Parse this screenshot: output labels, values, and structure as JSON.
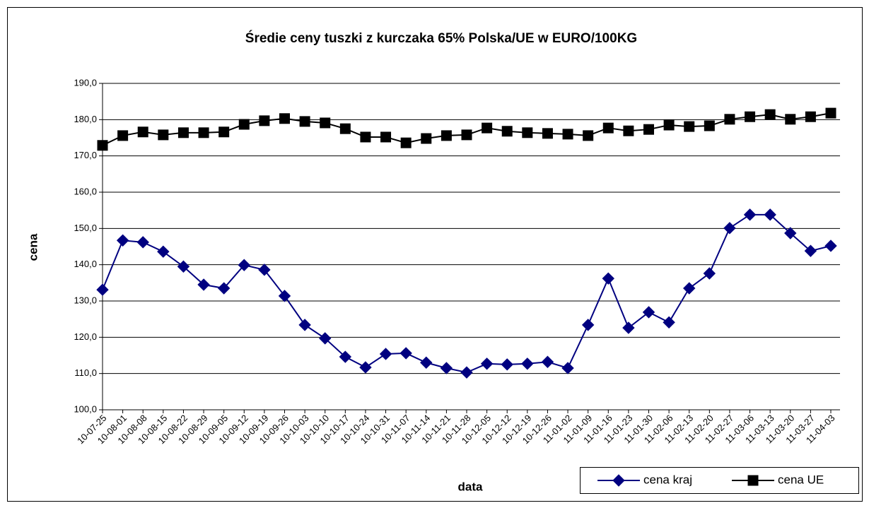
{
  "chart_data": {
    "type": "line",
    "title": "Średie ceny tuszki z kurczaka 65% Polska/UE w EURO/100KG",
    "x_label": "data",
    "y_label": "cena",
    "categories": [
      "10-07-25",
      "10-08-01",
      "10-08-08",
      "10-08-15",
      "10-08-22",
      "10-08-29",
      "10-09-05",
      "10-09-12",
      "10-09-19",
      "10-09-26",
      "10-10-03",
      "10-10-10",
      "10-10-17",
      "10-10-24",
      "10-10-31",
      "10-11-07",
      "10-11-14",
      "10-11-21",
      "10-11-28",
      "10-12-05",
      "10-12-12",
      "10-12-19",
      "10-12-26",
      "11-01-02",
      "11-01-09",
      "11-01-16",
      "11-01-23",
      "11-01-30",
      "11-02-06",
      "11-02-13",
      "11-02-20",
      "11-02-27",
      "11-03-06",
      "11-03-13",
      "11-03-20",
      "11-03-27",
      "11-04-03"
    ],
    "series": [
      {
        "name": "cena kraj",
        "color": "#000080",
        "marker": "diamond",
        "values": [
          133.1,
          146.7,
          146.2,
          143.6,
          139.5,
          134.5,
          133.5,
          139.9,
          138.6,
          131.4,
          123.4,
          119.7,
          114.6,
          111.7,
          115.4,
          115.6,
          113.0,
          111.5,
          110.3,
          112.7,
          112.5,
          112.7,
          113.2,
          111.5,
          123.4,
          136.2,
          122.6,
          126.9,
          124.1,
          133.5,
          137.6,
          150.1,
          153.8,
          153.8,
          148.7,
          143.8,
          145.2
        ]
      },
      {
        "name": "cena UE",
        "color": "#000000",
        "marker": "square",
        "values": [
          172.9,
          175.6,
          176.6,
          175.8,
          176.4,
          176.4,
          176.6,
          178.7,
          179.7,
          180.3,
          179.5,
          179.1,
          177.5,
          175.2,
          175.2,
          173.6,
          174.8,
          175.6,
          175.8,
          177.7,
          176.8,
          176.4,
          176.2,
          176.0,
          175.6,
          177.7,
          176.9,
          177.3,
          178.5,
          178.1,
          178.3,
          180.1,
          180.8,
          181.4,
          180.1,
          180.8,
          181.8
        ]
      }
    ],
    "ylim": [
      100,
      190
    ],
    "yticks": [
      {
        "value": 100,
        "label": "100,0"
      },
      {
        "value": 110,
        "label": "110,0"
      },
      {
        "value": 120,
        "label": "120,0"
      },
      {
        "value": 130,
        "label": "130,0"
      },
      {
        "value": 140,
        "label": "140,0"
      },
      {
        "value": 150,
        "label": "150,0"
      },
      {
        "value": 160,
        "label": "160,0"
      },
      {
        "value": 170,
        "label": "170,0"
      },
      {
        "value": 180,
        "label": "180,0"
      },
      {
        "value": 190,
        "label": "190,0"
      }
    ],
    "grid": true,
    "legend": "bottom-right"
  }
}
